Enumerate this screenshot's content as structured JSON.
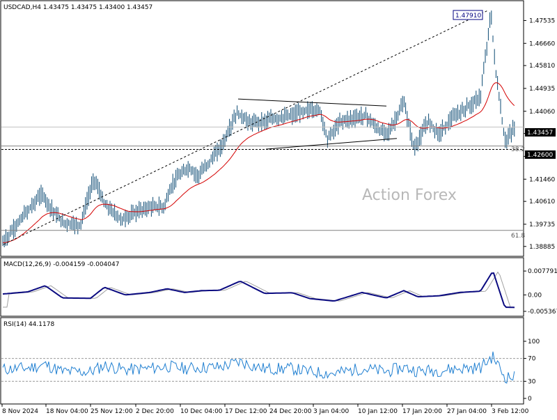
{
  "chart_data": [
    {
      "type": "ohlc",
      "symbol_header": "USDCAD,H4  1.43475 1.43475 1.43400 1.43457",
      "watermark": "Action Forex",
      "ylim": [
        1.3856,
        1.4824
      ],
      "price_ticks": [
        "1.47535",
        "1.46660",
        "1.45810",
        "1.44935",
        "1.44060",
        "1.43210",
        "1.42335",
        "1.41460",
        "1.40610",
        "1.39735",
        "1.38885"
      ],
      "current_price": "1.43457",
      "support_level": "1.42600",
      "peak_label": "1.47910",
      "fib_382_label": "38.2",
      "fib_618_label": "61.8",
      "fib_382": 1.4273,
      "fib_618": 1.395,
      "ma_color": "#d40000",
      "bar_color": "#0b4a73",
      "line_color": "#000000"
    },
    {
      "type": "line",
      "title": "MACD(12,26,9) -0.004159 -0.004047",
      "ticks": [
        "0.007791",
        "0.00",
        "-0.005367"
      ],
      "ylim": [
        -0.0065,
        0.0085
      ],
      "macd_color": "#0a0a80",
      "signal_color": "#a0a0a0"
    },
    {
      "type": "line",
      "title": "RSI(14) 44.1178",
      "ticks": [
        "100",
        "70",
        "30",
        "0"
      ],
      "levels": [
        70,
        30
      ],
      "ylim": [
        0,
        100
      ],
      "rsi_color": "#1f7fd1"
    }
  ],
  "x_ticks": [
    "8 Nov 2024",
    "18 Nov 04:00",
    "25 Nov 12:00",
    "2 Dec 20:00",
    "10 Dec 04:00",
    "17 Dec 12:00",
    "24 Dec 20:00",
    "3 Jan 04:00",
    "10 Jan 12:00",
    "17 Jan 20:00",
    "27 Jan 04:00",
    "3 Feb 12:00"
  ]
}
